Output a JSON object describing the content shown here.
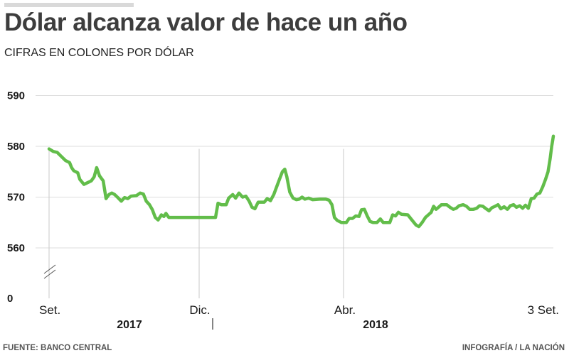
{
  "header": {
    "title": "Dólar alcanza valor de hace un año",
    "subtitle": "CIFRAS EN COLONES POR DÓLAR"
  },
  "footer": {
    "source": "FUENTE: BANCO CENTRAL",
    "credit": "INFOGRAFÍA  / LA NACIÓN"
  },
  "colors": {
    "line": "#62bd4a",
    "grid": "#dddddd",
    "axis_text": "#1a1a1a"
  },
  "chart_data": {
    "type": "line",
    "title": "Dólar alcanza valor de hace un año",
    "subtitle": "CIFRAS EN COLONES POR DÓLAR",
    "xlabel": "",
    "ylabel": "",
    "y_ticks": [
      590,
      580,
      570,
      560,
      0
    ],
    "axis_break": true,
    "ylim": [
      558,
      591
    ],
    "grid": true,
    "x_tick_labels": [
      "Set.",
      "Dic.",
      "Abr.",
      "3 Set."
    ],
    "year_labels": [
      "2017",
      "2018"
    ],
    "x_range": [
      0,
      100
    ],
    "series": [
      {
        "values": [
          [
            0,
            579.5
          ],
          [
            1,
            579
          ],
          [
            2,
            578.8
          ],
          [
            3,
            578
          ],
          [
            4,
            577.2
          ],
          [
            5,
            576.8
          ],
          [
            5.5,
            575.8
          ],
          [
            6,
            575.2
          ],
          [
            7,
            574.8
          ],
          [
            7.5,
            573.5
          ],
          [
            8.5,
            572.5
          ],
          [
            9.5,
            572.9
          ],
          [
            10.3,
            573.2
          ],
          [
            11,
            574
          ],
          [
            11.6,
            575.8
          ],
          [
            12.3,
            574.2
          ],
          [
            13.2,
            573.2
          ],
          [
            13.9,
            569.7
          ],
          [
            14.6,
            570.5
          ],
          [
            15.3,
            570.8
          ],
          [
            16,
            570.5
          ],
          [
            16.9,
            569.8
          ],
          [
            17.6,
            569.2
          ],
          [
            18.4,
            569.9
          ],
          [
            19.2,
            569.7
          ],
          [
            20,
            570.2
          ],
          [
            21.3,
            570.3
          ],
          [
            22.2,
            570.8
          ],
          [
            23,
            570.6
          ],
          [
            23.7,
            569.2
          ],
          [
            24.5,
            568.5
          ],
          [
            25.2,
            567.5
          ],
          [
            25.9,
            566
          ],
          [
            26.6,
            565.5
          ],
          [
            27.4,
            566.5
          ],
          [
            28,
            566.2
          ],
          [
            28.5,
            566.8
          ],
          [
            29.2,
            566
          ],
          [
            31,
            566
          ],
          [
            34,
            566
          ],
          [
            37,
            566
          ],
          [
            40,
            566
          ],
          [
            40.6,
            566
          ],
          [
            41.2,
            568.8
          ],
          [
            42,
            568.5
          ],
          [
            43.2,
            568.5
          ],
          [
            43.8,
            569.8
          ],
          [
            44.8,
            570.5
          ],
          [
            45.5,
            569.8
          ],
          [
            46.3,
            570.8
          ],
          [
            47.2,
            570
          ],
          [
            48,
            570.2
          ],
          [
            48.8,
            569.2
          ],
          [
            49.5,
            568
          ],
          [
            50.2,
            567.7
          ],
          [
            51,
            569
          ],
          [
            52.5,
            569
          ],
          [
            53.2,
            569.7
          ],
          [
            54,
            569.3
          ],
          [
            54.8,
            570.5
          ],
          [
            55.5,
            572
          ],
          [
            56.2,
            573.5
          ],
          [
            56.9,
            575
          ],
          [
            57.5,
            575.5
          ],
          [
            58,
            574
          ],
          [
            58.7,
            571
          ],
          [
            59.5,
            569.8
          ],
          [
            60.3,
            569.5
          ],
          [
            61,
            569.6
          ],
          [
            61.7,
            570
          ],
          [
            62.4,
            569.6
          ],
          [
            63.3,
            569.8
          ],
          [
            64.3,
            569.5
          ],
          [
            66,
            569.6
          ],
          [
            67.5,
            569.6
          ],
          [
            68.3,
            569.4
          ],
          [
            69,
            568.5
          ],
          [
            69.6,
            566
          ],
          [
            70.3,
            565.4
          ],
          [
            71.3,
            565
          ],
          [
            72.5,
            565
          ],
          [
            73.2,
            565.8
          ],
          [
            74,
            565.8
          ],
          [
            74.8,
            566.3
          ],
          [
            75.6,
            566.2
          ],
          [
            76.2,
            567.5
          ],
          [
            76.9,
            567.6
          ],
          [
            77.6,
            566.3
          ],
          [
            78.3,
            565.2
          ],
          [
            79,
            565
          ],
          [
            80,
            565
          ],
          [
            80.8,
            565.7
          ],
          [
            81.5,
            565
          ],
          [
            83.1,
            565
          ],
          [
            83.8,
            566.5
          ],
          [
            84.5,
            566.3
          ],
          [
            85.2,
            567
          ],
          [
            86,
            566.6
          ],
          [
            87.5,
            566.5
          ],
          [
            88.5,
            565.5
          ],
          [
            89.5,
            564.5
          ],
          [
            90.2,
            564.2
          ],
          [
            91,
            565
          ],
          [
            91.8,
            566
          ],
          [
            92.5,
            566.5
          ],
          [
            93.2,
            567
          ],
          [
            93.8,
            568.2
          ],
          [
            94.4,
            567.6
          ],
          [
            95,
            568
          ],
          [
            95.7,
            568.5
          ],
          [
            97,
            568.5
          ],
          [
            97.8,
            568
          ],
          [
            98.6,
            567.6
          ],
          [
            99.3,
            567.8
          ],
          [
            100,
            568.3
          ],
          [
            101,
            568.5
          ],
          [
            101.8,
            568.2
          ],
          [
            102.6,
            567.6
          ],
          [
            103.5,
            567.6
          ],
          [
            104.3,
            567.8
          ],
          [
            105,
            568.3
          ],
          [
            105.8,
            568.2
          ],
          [
            106.6,
            567.7
          ],
          [
            107.3,
            567.3
          ],
          [
            108,
            567.9
          ],
          [
            108.8,
            568.2
          ],
          [
            109.5,
            568.5
          ],
          [
            110.2,
            567.7
          ],
          [
            111,
            568.1
          ],
          [
            111.8,
            567.6
          ],
          [
            112.5,
            568.3
          ],
          [
            113.3,
            568.5
          ],
          [
            114,
            568
          ],
          [
            114.8,
            568.3
          ],
          [
            115.5,
            567.8
          ],
          [
            116.2,
            568.4
          ],
          [
            116.9,
            567.8
          ],
          [
            117.6,
            569.7
          ],
          [
            118.3,
            569.8
          ],
          [
            119,
            570.6
          ],
          [
            119.7,
            570.8
          ],
          [
            120.4,
            572
          ],
          [
            121.1,
            573.5
          ],
          [
            121.7,
            575
          ],
          [
            122.2,
            577.5
          ],
          [
            122.6,
            580
          ],
          [
            123,
            582
          ]
        ]
      }
    ]
  }
}
